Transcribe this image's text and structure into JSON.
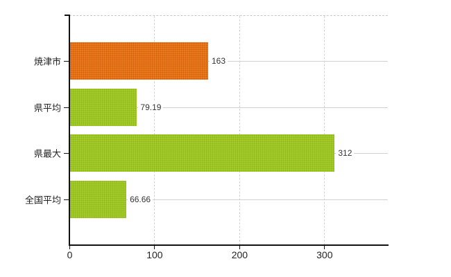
{
  "chart_data": {
    "type": "bar",
    "orientation": "horizontal",
    "title": "",
    "xlabel": "",
    "ylabel": "",
    "categories": [
      "焼津市",
      "県平均",
      "県最大",
      "全国平均"
    ],
    "values": [
      163,
      79.19,
      312,
      66.66
    ],
    "value_labels": [
      "163",
      "79.19",
      "312",
      "66.66"
    ],
    "bar_colors": [
      "#ec8418",
      "#aacf30",
      "#aacf30",
      "#aacf30"
    ],
    "bar_pattern_colors": [
      "rgba(200,60,20,0.55)",
      "rgba(122,172,10,0.60)",
      "rgba(122,172,10,0.60)",
      "rgba(122,172,10,0.60)"
    ],
    "xlim": [
      0,
      375
    ],
    "x_ticks": [
      0,
      100,
      200,
      300
    ],
    "x_tick_labels": [
      "0",
      "100",
      "200",
      "300"
    ],
    "grid": true,
    "legend": false
  },
  "colors": {
    "accent_orange": "#ec8418",
    "accent_green": "#aacf30",
    "axis": "#111111",
    "gridline_horizontal": "#cdd2ca",
    "gridline_vertical": "#d4d4d4",
    "background": "#ffffff",
    "text": "#222222"
  }
}
